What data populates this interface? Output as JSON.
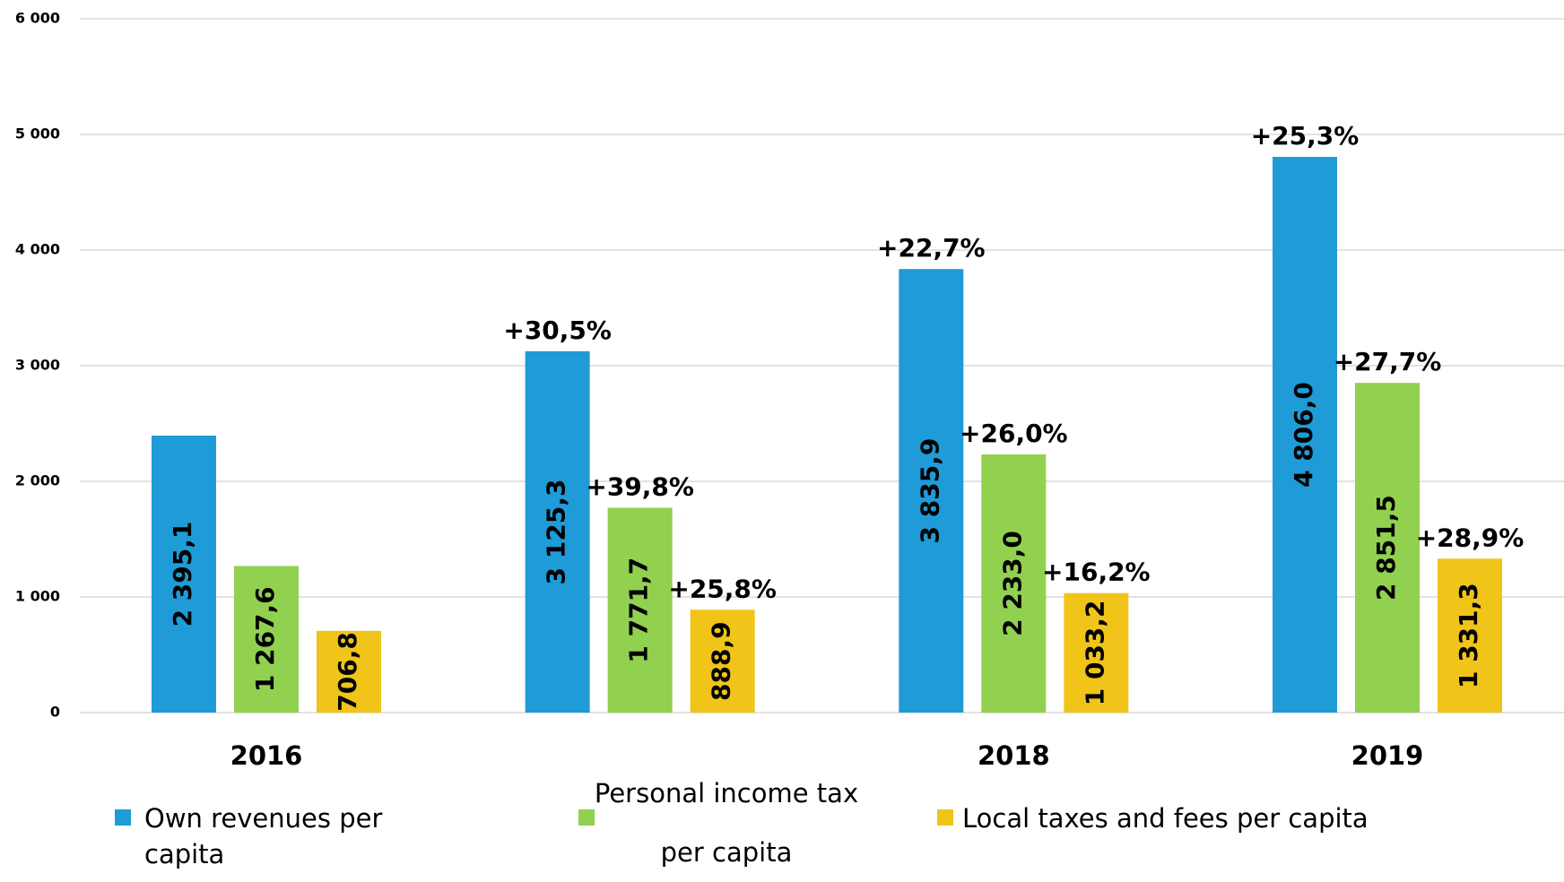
{
  "chart_data": {
    "type": "bar",
    "categories": [
      "2016",
      null,
      "2018",
      "2019"
    ],
    "ylim": [
      0,
      6000
    ],
    "yticks": [
      0,
      {
        "value": 1000,
        "label": "1 000"
      },
      {
        "value": 2000,
        "label": "2 000"
      },
      {
        "value": 3000,
        "label": "3 000"
      },
      {
        "value": 4000,
        "label": "4 000"
      },
      {
        "value": 5000,
        "label": "5 000"
      },
      {
        "value": 6000,
        "label": "6 000"
      }
    ],
    "grid": true,
    "legend": "bottom",
    "series": [
      {
        "name": "Own revenues per capita",
        "color": "#1f9bd7",
        "label_color": "#ffffff",
        "values": [
          2395.1,
          3125.3,
          3835.9,
          4806.0
        ],
        "value_labels": [
          "2 395,1",
          "3 125,3",
          "3 835,9",
          "4 806,0"
        ],
        "annotations": [
          null,
          "+30,5%",
          "+22,7%",
          "+25,3%"
        ]
      },
      {
        "name": "Personal income tax per capita",
        "color": "#92d050",
        "label_color": "#000000",
        "values": [
          1267.6,
          1771.7,
          2233.0,
          2851.5
        ],
        "value_labels": [
          "1 267,6",
          "1 771,7",
          "2 233,0",
          "2 851,5"
        ],
        "annotations": [
          null,
          "+39,8%",
          "+26,0%",
          "+27,7%"
        ]
      },
      {
        "name": "Local taxes and fees per capita",
        "color": "#f0c419",
        "label_color": "#000000",
        "values": [
          706.8,
          888.9,
          1033.2,
          1331.3
        ],
        "value_labels": [
          "706,8",
          "888,9",
          "1 033,2",
          "1 331,3"
        ],
        "annotations": [
          null,
          "+25,8%",
          "+16,2%",
          "+28,9%"
        ]
      }
    ]
  }
}
